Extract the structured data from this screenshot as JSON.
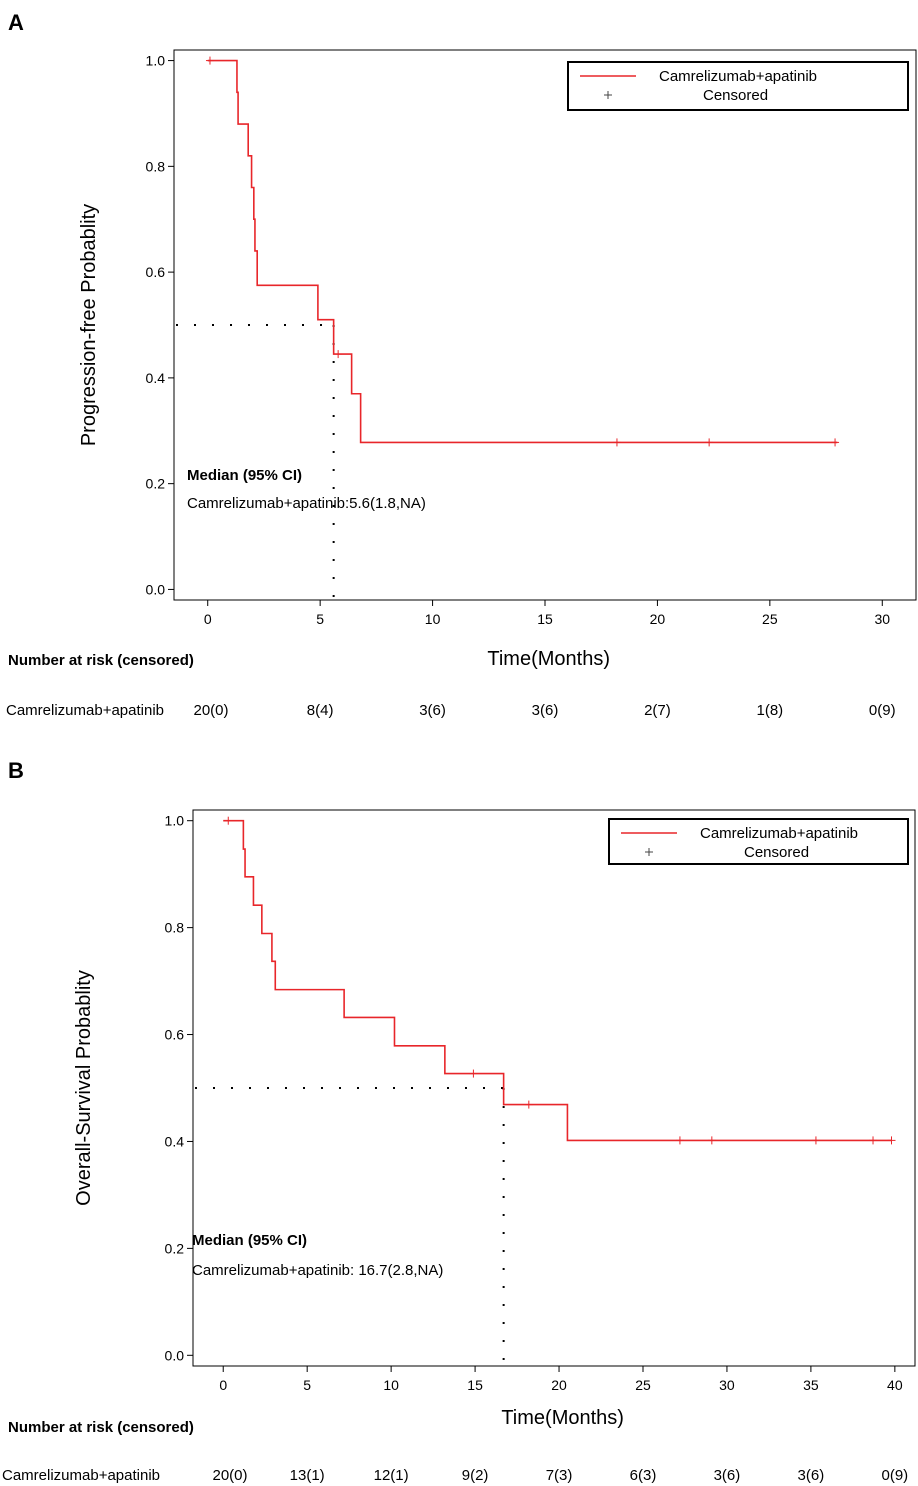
{
  "chart_data": [
    {
      "type": "line",
      "panel": "A",
      "ylabel": "Progression-free Probablity",
      "xlabel": "Time(Months)",
      "xlim": [
        -1.5,
        31.5
      ],
      "ylim": [
        -0.02,
        1.02
      ],
      "xticks": [
        0,
        5,
        10,
        15,
        20,
        25,
        30
      ],
      "yticks": [
        0.0,
        0.2,
        0.4,
        0.6,
        0.8,
        1.0
      ],
      "ytick_labels": [
        "0.0",
        "0.2",
        "0.4",
        "0.6",
        "0.8",
        "1.0"
      ],
      "legend": {
        "series_label": "Camrelizumab+apatinib",
        "censor_label": "Censored",
        "position": "top-right"
      },
      "series": [
        {
          "name": "Camrelizumab+apatinib",
          "color": "#e8262a",
          "steps": [
            [
              0,
              1.0
            ],
            [
              1.3,
              0.94
            ],
            [
              1.35,
              0.88
            ],
            [
              1.8,
              0.82
            ],
            [
              1.95,
              0.76
            ],
            [
              2.05,
              0.7
            ],
            [
              2.1,
              0.64
            ],
            [
              2.2,
              0.575
            ],
            [
              4.9,
              0.51
            ],
            [
              5.6,
              0.445
            ],
            [
              6.4,
              0.37
            ],
            [
              6.8,
              0.278
            ],
            [
              28.0,
              0.278
            ]
          ],
          "censored": [
            [
              0.1,
              1.0
            ],
            [
              5.8,
              0.445
            ],
            [
              18.2,
              0.278
            ],
            [
              22.3,
              0.278
            ],
            [
              27.9,
              0.278
            ]
          ]
        }
      ],
      "median": {
        "value": 5.6,
        "title": "Median (95% CI)",
        "text": "Camrelizumab+apatinib:5.6(1.8,NA)"
      },
      "risk": {
        "heading": "Number at risk (censored)",
        "group": "Camrelizumab+apatinib",
        "times": [
          0,
          5,
          10,
          15,
          20,
          25,
          30
        ],
        "values": [
          "20(0)",
          "8(4)",
          "3(6)",
          "3(6)",
          "2(7)",
          "1(8)",
          "0(9)"
        ]
      }
    },
    {
      "type": "line",
      "panel": "B",
      "ylabel": "Overall-Survival Probablity",
      "xlabel": "Time(Months)",
      "xlim": [
        -1.8,
        41.2
      ],
      "ylim": [
        -0.02,
        1.02
      ],
      "xticks": [
        0,
        5,
        10,
        15,
        20,
        25,
        30,
        35,
        40
      ],
      "yticks": [
        0.0,
        0.2,
        0.4,
        0.6,
        0.8,
        1.0
      ],
      "ytick_labels": [
        "0.0",
        "0.2",
        "0.4",
        "0.6",
        "0.8",
        "1.0"
      ],
      "legend": {
        "series_label": "Camrelizumab+apatinib",
        "censor_label": "Censored",
        "position": "top-right"
      },
      "series": [
        {
          "name": "Camrelizumab+apatinib",
          "color": "#e8262a",
          "steps": [
            [
              0,
              1.0
            ],
            [
              1.2,
              0.947
            ],
            [
              1.3,
              0.895
            ],
            [
              1.8,
              0.842
            ],
            [
              2.3,
              0.789
            ],
            [
              2.9,
              0.737
            ],
            [
              3.1,
              0.684
            ],
            [
              7.2,
              0.632
            ],
            [
              10.2,
              0.579
            ],
            [
              13.2,
              0.527
            ],
            [
              16.7,
              0.469
            ],
            [
              20.5,
              0.402
            ],
            [
              39.8,
              0.402
            ]
          ],
          "censored": [
            [
              0.3,
              1.0
            ],
            [
              14.9,
              0.527
            ],
            [
              18.2,
              0.469
            ],
            [
              27.2,
              0.402
            ],
            [
              29.1,
              0.402
            ],
            [
              35.3,
              0.402
            ],
            [
              38.7,
              0.402
            ],
            [
              39.8,
              0.402
            ]
          ]
        }
      ],
      "median": {
        "value": 16.7,
        "title": "Median (95% CI)",
        "text": "Camrelizumab+apatinib: 16.7(2.8,NA)"
      },
      "risk": {
        "heading": "Number at risk (censored)",
        "group": "Camrelizumab+apatinib",
        "times": [
          0,
          5,
          10,
          15,
          20,
          25,
          30,
          35,
          40
        ],
        "values": [
          "20(0)",
          "13(1)",
          "12(1)",
          "9(2)",
          "7(3)",
          "6(3)",
          "3(6)",
          "3(6)",
          "0(9)"
        ]
      }
    }
  ]
}
